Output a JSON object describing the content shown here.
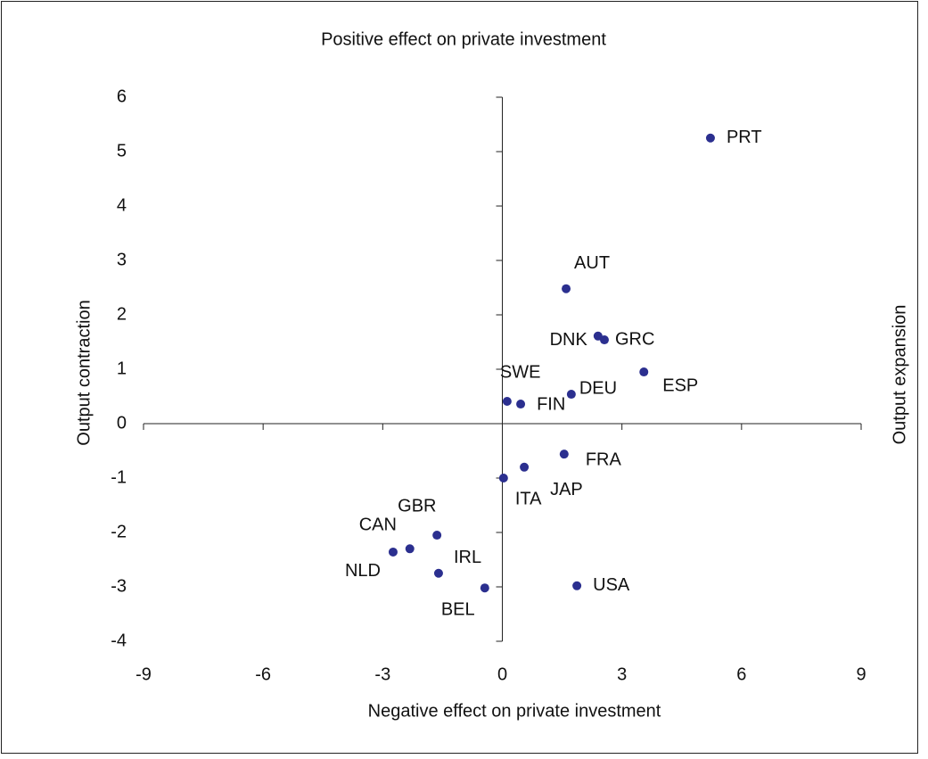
{
  "chart_data": {
    "type": "scatter",
    "title": "Positive effect on private investment",
    "x_label": "Negative effect on private investment",
    "y_label": "Output contraction",
    "y2_label": "Output expansion",
    "color": "#2b2f8f",
    "series": [
      {
        "labels": [
          "PRT",
          "AUT",
          "DNK",
          "GRC",
          "ESP",
          "DEU",
          "SWE",
          "FIN",
          "FRA",
          "JAP",
          "ITA",
          "GBR",
          "CAN",
          "NLD",
          "IRL",
          "BEL",
          "USA"
        ],
        "x": [
          5.22,
          1.6,
          2.4,
          2.56,
          3.55,
          1.73,
          0.12,
          0.46,
          1.55,
          0.55,
          0.03,
          -1.64,
          -2.32,
          -2.74,
          -1.6,
          -0.44,
          1.87
        ],
        "values": [
          5.25,
          2.48,
          1.61,
          1.54,
          0.95,
          0.54,
          0.41,
          0.36,
          -0.56,
          -0.8,
          -1.0,
          -2.05,
          -2.3,
          -2.36,
          -2.75,
          -3.02,
          -2.98
        ]
      }
    ],
    "xlim": [
      -9,
      9
    ],
    "xticks": [
      -9,
      -6,
      -3,
      0,
      3,
      6,
      9
    ],
    "ylim": [
      -4,
      6
    ],
    "yticks": [
      -4,
      -3,
      -2,
      -1,
      0,
      1,
      2,
      3,
      4,
      5,
      6
    ]
  }
}
